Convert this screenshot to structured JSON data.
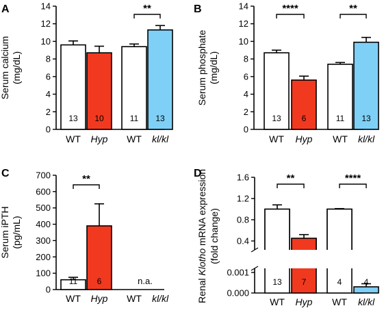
{
  "colors": {
    "wt": "#ffffff",
    "hyp": "#f1391f",
    "klkl": "#7fd0f6",
    "stroke": "#000000"
  },
  "chart_data": [
    {
      "panel": "A",
      "type": "bar",
      "ylabel": [
        "Serum calcium",
        "(mg/dL)"
      ],
      "ylim": [
        0,
        14
      ],
      "yticks": [
        0,
        2,
        4,
        6,
        8,
        10,
        12,
        14
      ],
      "categories": [
        "WT",
        "Hyp",
        "WT",
        "kl/kl"
      ],
      "values": [
        9.6,
        8.7,
        9.4,
        11.3
      ],
      "errors": [
        0.45,
        0.75,
        0.3,
        0.5
      ],
      "n": [
        "13",
        "10",
        "11",
        "13"
      ],
      "significance": [
        {
          "pair": [
            2,
            3
          ],
          "label": "**"
        }
      ]
    },
    {
      "panel": "B",
      "type": "bar",
      "ylabel": [
        "Serum phosphate",
        "(mg/dL)"
      ],
      "ylim": [
        0,
        14
      ],
      "yticks": [
        0,
        2,
        4,
        6,
        8,
        10,
        12,
        14
      ],
      "categories": [
        "WT",
        "Hyp",
        "WT",
        "kl/kl"
      ],
      "values": [
        8.7,
        5.6,
        7.4,
        9.9
      ],
      "errors": [
        0.3,
        0.45,
        0.2,
        0.55
      ],
      "n": [
        "13",
        "6",
        "11",
        "13"
      ],
      "significance": [
        {
          "pair": [
            0,
            1
          ],
          "label": "****"
        },
        {
          "pair": [
            2,
            3
          ],
          "label": "**"
        }
      ]
    },
    {
      "panel": "C",
      "type": "bar",
      "ylabel": [
        "Serum iPTH",
        "(pg/mL)"
      ],
      "ylim": [
        0,
        700
      ],
      "yticks": [
        0,
        100,
        200,
        300,
        400,
        500,
        600,
        700
      ],
      "categories": [
        "WT",
        "Hyp",
        "WT",
        "kl/kl"
      ],
      "values": [
        60,
        390,
        null,
        null
      ],
      "errors": [
        15,
        135,
        null,
        null
      ],
      "n": [
        "11",
        "6",
        "",
        ""
      ],
      "na_text": "n.a.",
      "significance": [
        {
          "pair": [
            0,
            1
          ],
          "label": "**"
        }
      ]
    },
    {
      "panel": "D",
      "type": "bar",
      "ylabel_parts": [
        "Renal ",
        "Klotho",
        " mRNA expression"
      ],
      "ylabel2": "(fold change)",
      "broken_axis": true,
      "upper_range": [
        0.1,
        1.4
      ],
      "upper_ticks": [
        "0.4",
        "0.8",
        "1.2",
        "1.6"
      ],
      "upper_tick_values": [
        0.4,
        0.8,
        1.2,
        1.6
      ],
      "lower_range": [
        0,
        0.0012
      ],
      "lower_ticks": [
        "0.000",
        "0.001"
      ],
      "lower_tick_values": [
        0,
        0.001
      ],
      "categories": [
        "WT",
        "Hyp",
        "WT",
        "kl/kl"
      ],
      "values": [
        1.0,
        0.45,
        1.0,
        0.0003
      ],
      "errors": [
        0.08,
        0.07,
        0.01,
        0.00015
      ],
      "n": [
        "13",
        "7",
        "4",
        "4"
      ],
      "significance": [
        {
          "pair": [
            0,
            1
          ],
          "label": "**"
        },
        {
          "pair": [
            2,
            3
          ],
          "label": "****"
        }
      ]
    }
  ]
}
